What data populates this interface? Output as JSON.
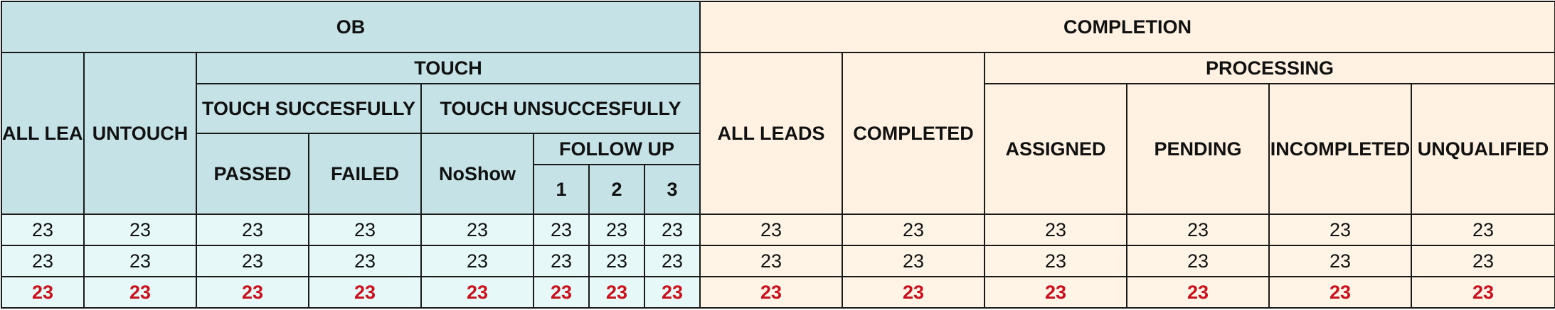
{
  "header": {
    "ob": "OB",
    "completion": "COMPLETION",
    "touch": "TOUCH",
    "processing": "PROCESSING",
    "ob_all_leads": "ALL LEADS",
    "untouch": "UNTOUCH",
    "touch_successfully": "TOUCH SUCCESFULLY",
    "touch_unsuccessfully": "TOUCH UNSUCCESFULLY",
    "passed": "PASSED",
    "failed": "FAILED",
    "noshow": "NoShow",
    "follow_up": "FOLLOW UP",
    "fu1": "1",
    "fu2": "2",
    "fu3": "3",
    "cmp_all_leads": "ALL LEADS",
    "completed": "COMPLETED",
    "assigned": "ASSIGNED",
    "pending": "PENDING",
    "incompleted": "INCOMPLETED",
    "unqualified": "UNQUALIFIED"
  },
  "rows": [
    [
      "23",
      "23",
      "23",
      "23",
      "23",
      "23",
      "23",
      "23",
      "23",
      "23",
      "23",
      "23",
      "23",
      "23"
    ],
    [
      "23",
      "23",
      "23",
      "23",
      "23",
      "23",
      "23",
      "23",
      "23",
      "23",
      "23",
      "23",
      "23",
      "23"
    ],
    [
      "23",
      "23",
      "23",
      "23",
      "23",
      "23",
      "23",
      "23",
      "23",
      "23",
      "23",
      "23",
      "23",
      "23"
    ]
  ],
  "colors": {
    "ob_header_bg": "#c5e3e6",
    "ob_cell_bg": "#e6f9f8",
    "completion_header_bg": "#fff2e2",
    "completion_cell_bg": "#fff4e6",
    "total_text": "#c8121e",
    "border": "#1a1a1a"
  }
}
